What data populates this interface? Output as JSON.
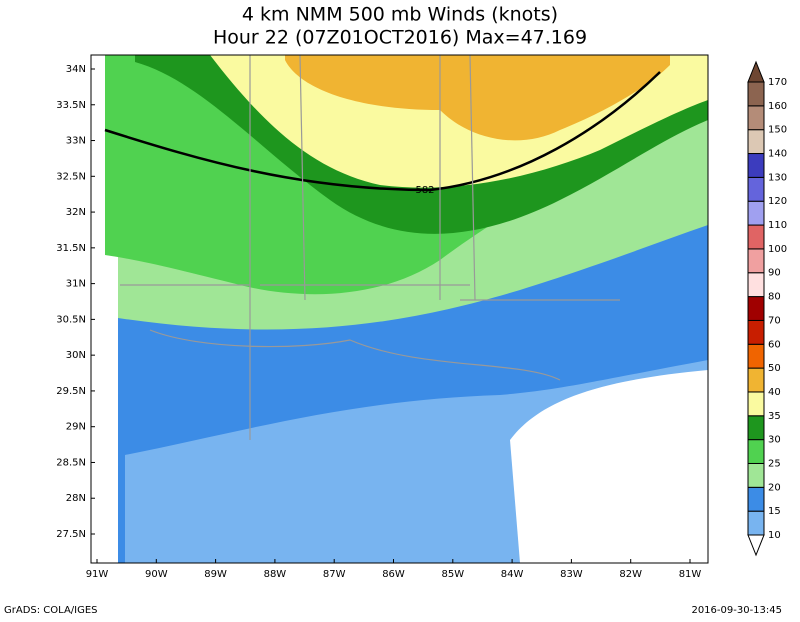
{
  "map": {
    "title": "4 km NMM 500 mb Winds (knots)",
    "subtitle": "Hour 22 (07Z01OCT2016) Max=47.169",
    "lat_labels": [
      "34N",
      "33.5N",
      "33N",
      "32.5N",
      "32N",
      "31.5N",
      "31N",
      "30.5N",
      "30N",
      "29.5N",
      "29N",
      "28.5N",
      "28N",
      "27.5N"
    ],
    "lon_labels": [
      "91W",
      "90W",
      "89W",
      "88W",
      "87W",
      "86W",
      "85W",
      "84W",
      "83W",
      "82W",
      "81W"
    ],
    "contour_label": "582",
    "colorbar": {
      "levels": [
        10,
        15,
        20,
        25,
        30,
        35,
        40,
        50,
        60,
        70,
        80,
        90,
        100,
        110,
        120,
        130,
        140,
        150,
        160,
        170
      ],
      "colors": [
        "#ffffff",
        "#78b4f0",
        "#3c8ce6",
        "#a0e696",
        "#50d250",
        "#1e961e",
        "#fafaa0",
        "#f0b432",
        "#f06400",
        "#c81e00",
        "#a00000",
        "#ffe0e0",
        "#f0a0a0",
        "#e06464",
        "#a0a0f0",
        "#6464dc",
        "#3c3cbe",
        "#dcc8b4",
        "#b48c78",
        "#8c6450",
        "#6e4632"
      ]
    },
    "footer_left": "GrADS: COLA/IGES",
    "footer_right": "2016-09-30-13:45"
  }
}
